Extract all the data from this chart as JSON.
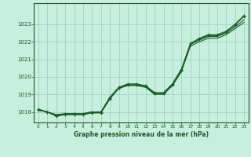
{
  "title": "Graphe pression niveau de la mer (hPa)",
  "background_color": "#c8eedd",
  "grid_color": "#99ccbb",
  "line_color": "#1a5c2a",
  "xlim": [
    -0.5,
    23.5
  ],
  "ylim": [
    1017.4,
    1024.2
  ],
  "yticks": [
    1018,
    1019,
    1020,
    1021,
    1022,
    1023
  ],
  "xticks": [
    0,
    1,
    2,
    3,
    4,
    5,
    6,
    7,
    8,
    9,
    10,
    11,
    12,
    13,
    14,
    15,
    16,
    17,
    18,
    19,
    20,
    21,
    22,
    23
  ],
  "series1": [
    1018.1,
    1018.0,
    1017.75,
    1017.85,
    1017.85,
    1017.85,
    1017.95,
    1017.95,
    1018.75,
    1019.35,
    1019.55,
    1019.55,
    1019.45,
    1019.05,
    1019.05,
    1019.55,
    1020.35,
    1021.85,
    1022.15,
    1022.35,
    1022.35,
    1022.55,
    1022.95,
    1023.45
  ],
  "series2": [
    1018.15,
    1018.0,
    1017.8,
    1017.9,
    1017.9,
    1017.9,
    1018.0,
    1018.0,
    1018.8,
    1019.4,
    1019.6,
    1019.6,
    1019.5,
    1019.1,
    1019.1,
    1019.6,
    1020.4,
    1021.9,
    1022.2,
    1022.4,
    1022.4,
    1022.6,
    1023.0,
    1023.5
  ],
  "series3": [
    1018.15,
    1018.0,
    1017.85,
    1017.9,
    1017.9,
    1017.9,
    1018.0,
    1018.0,
    1018.85,
    1019.4,
    1019.55,
    1019.55,
    1019.45,
    1019.05,
    1019.05,
    1019.6,
    1020.45,
    1021.85,
    1022.1,
    1022.3,
    1022.3,
    1022.5,
    1022.85,
    1023.25
  ],
  "series4": [
    1018.1,
    1018.0,
    1017.8,
    1017.85,
    1017.85,
    1017.85,
    1017.95,
    1017.95,
    1018.75,
    1019.35,
    1019.5,
    1019.5,
    1019.4,
    1019.0,
    1019.0,
    1019.5,
    1020.3,
    1021.75,
    1022.0,
    1022.2,
    1022.2,
    1022.4,
    1022.75,
    1023.1
  ]
}
